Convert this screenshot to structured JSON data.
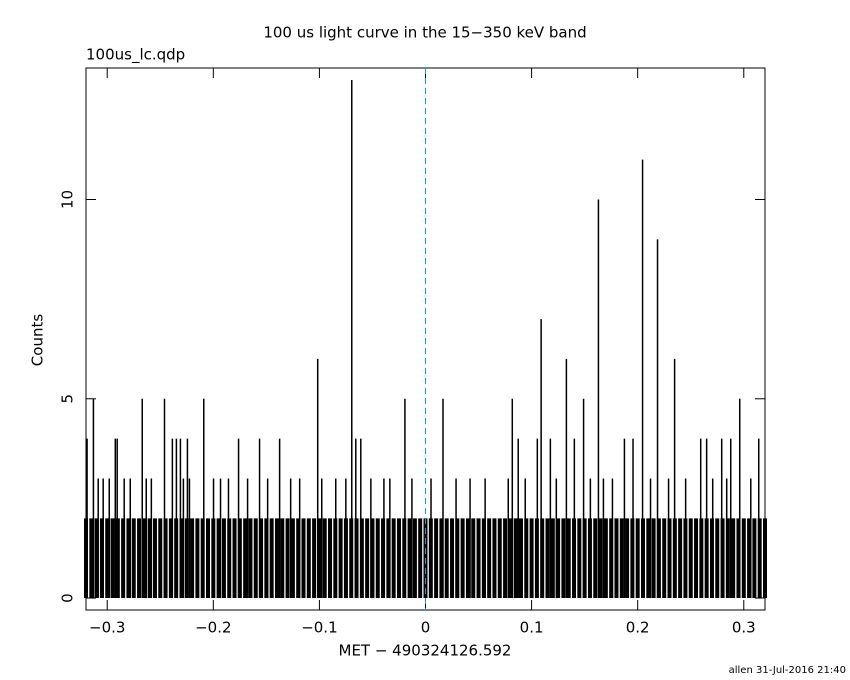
{
  "chart_data": {
    "type": "bar",
    "title": "100 us light curve in the 15−350 keV band",
    "subtitle": "100us_lc.qdp",
    "x_label": "MET − 490324126.592",
    "y_label": "Counts",
    "footer": "allen 31-Jul-2016 21:40",
    "xlim": [
      -0.32,
      0.32
    ],
    "ylim": [
      -0.3,
      13.3
    ],
    "xticks": [
      {
        "value": -0.3,
        "label": "−0.3"
      },
      {
        "value": -0.2,
        "label": "−0.2"
      },
      {
        "value": -0.1,
        "label": "−0.1"
      },
      0,
      0.1,
      0.2,
      0.3
    ],
    "yticks": [
      0,
      5,
      10
    ],
    "vline": 0,
    "vline_color": "#1a9bd0",
    "color": "#000000",
    "series": [
      {
        "x": [
          -0.32,
          -0.315,
          -0.31,
          -0.305,
          -0.3,
          -0.295,
          -0.29,
          -0.285,
          -0.28,
          -0.275,
          -0.27,
          -0.265,
          -0.26,
          -0.255,
          -0.25,
          -0.245,
          -0.24,
          -0.235,
          -0.23,
          -0.225,
          -0.22,
          -0.215,
          -0.21,
          -0.205,
          -0.2,
          -0.195,
          -0.19,
          -0.185,
          -0.18,
          -0.175,
          -0.17,
          -0.165,
          -0.16,
          -0.155,
          -0.15,
          -0.145,
          -0.14,
          -0.135,
          -0.13,
          -0.125,
          -0.12,
          -0.115,
          -0.11,
          -0.105,
          -0.1,
          -0.095,
          -0.09,
          -0.085,
          -0.08,
          -0.075,
          -0.07,
          -0.065,
          -0.06,
          -0.055,
          -0.05,
          -0.045,
          -0.04,
          -0.035,
          -0.03,
          -0.025,
          -0.02,
          -0.015,
          -0.01,
          -0.005,
          0,
          0.005,
          0.01,
          0.015,
          0.02,
          0.025,
          0.03,
          0.035,
          0.04,
          0.045,
          0.05,
          0.055,
          0.06,
          0.065,
          0.07,
          0.075,
          0.08,
          0.085,
          0.09,
          0.095,
          0.1,
          0.105,
          0.11,
          0.115,
          0.12,
          0.125,
          0.13,
          0.135,
          0.14,
          0.145,
          0.15,
          0.155,
          0.16,
          0.165,
          0.17,
          0.175,
          0.18,
          0.185,
          0.19,
          0.195,
          0.2,
          0.205,
          0.21,
          0.215,
          0.22,
          0.225,
          0.23,
          0.235,
          0.24,
          0.245,
          0.25,
          0.255,
          0.26,
          0.265,
          0.27,
          0.275,
          0.28,
          0.285,
          0.29,
          0.295,
          0.3,
          0.305,
          0.31,
          0.315,
          0.32
        ],
        "values": [
          2,
          2,
          2,
          2,
          2,
          2,
          2,
          2,
          2,
          2,
          2,
          2,
          2,
          2,
          2,
          2,
          2,
          2,
          2,
          2,
          2,
          2,
          2,
          2,
          2,
          2,
          2,
          2,
          2,
          2,
          2,
          2,
          2,
          2,
          2,
          2,
          2,
          2,
          2,
          2,
          2,
          2,
          2,
          2,
          2,
          2,
          2,
          2,
          2,
          2,
          2,
          2,
          2,
          2,
          2,
          2,
          2,
          2,
          2,
          2,
          2,
          2,
          2,
          2,
          2,
          2,
          2,
          2,
          2,
          2,
          2,
          2,
          2,
          2,
          2,
          2,
          2,
          2,
          2,
          2,
          2,
          2,
          2,
          2,
          2,
          2,
          2,
          2,
          2,
          2,
          2,
          2,
          2,
          2,
          2,
          2,
          2,
          2,
          2,
          2,
          2,
          2,
          2,
          2,
          2,
          2,
          2,
          2,
          2,
          2,
          2,
          2,
          2,
          2,
          2,
          2,
          2,
          2,
          2,
          2,
          2,
          2,
          2,
          2,
          2,
          2,
          2,
          2,
          2
        ]
      },
      {
        "x": [
          -0.0695,
          -0.1016,
          0.2046,
          0.163,
          0.2187,
          0.109,
          0.2348,
          0.1328,
          0.2962,
          0.149,
          0.0818,
          -0.0194,
          0.0165,
          -0.246,
          -0.267,
          -0.209,
          -0.313,
          -0.319,
          -0.2924,
          -0.2906,
          -0.2386,
          -0.2348,
          -0.231,
          -0.2244,
          -0.1762,
          -0.1564,
          -0.1375,
          -0.0657,
          -0.061,
          0.0874,
          0.1054,
          0.1177,
          0.1403,
          0.1875,
          0.1956,
          0.2594,
          0.265,
          0.2792,
          0.2877,
          0.3141,
          -0.3085,
          -0.3038,
          -0.2981,
          -0.284,
          -0.2783,
          -0.2632,
          -0.2584,
          -0.2282,
          -0.2225,
          -0.1998,
          -0.1932,
          -0.1857,
          -0.1677,
          -0.1488,
          -0.1271,
          -0.1186,
          -0.0978,
          -0.0846,
          -0.0751,
          -0.0515,
          -0.0392,
          -0.0336,
          -0.0128,
          0.0052,
          0.0288,
          0.042,
          0.0562,
          0.078,
          0.094,
          0.1233,
          0.1554,
          0.1677,
          0.1762,
          0.2121,
          0.2291,
          0.2452,
          0.2707,
          0.2839,
          0.3066
        ],
        "values": [
          13,
          6,
          11,
          10,
          9,
          7,
          6,
          6,
          5,
          5,
          5,
          5,
          5,
          5,
          5,
          5,
          5,
          4,
          4,
          4,
          4,
          4,
          4,
          4,
          4,
          4,
          4,
          4,
          4,
          4,
          4,
          4,
          4,
          4,
          4,
          4,
          4,
          4,
          4,
          4,
          3,
          3,
          3,
          3,
          3,
          3,
          3,
          3,
          3,
          3,
          3,
          3,
          3,
          3,
          3,
          3,
          3,
          3,
          3,
          3,
          3,
          3,
          3,
          3,
          3,
          3,
          3,
          3,
          3,
          3,
          3,
          3,
          3,
          3,
          3,
          3,
          3,
          3,
          3
        ]
      }
    ]
  }
}
